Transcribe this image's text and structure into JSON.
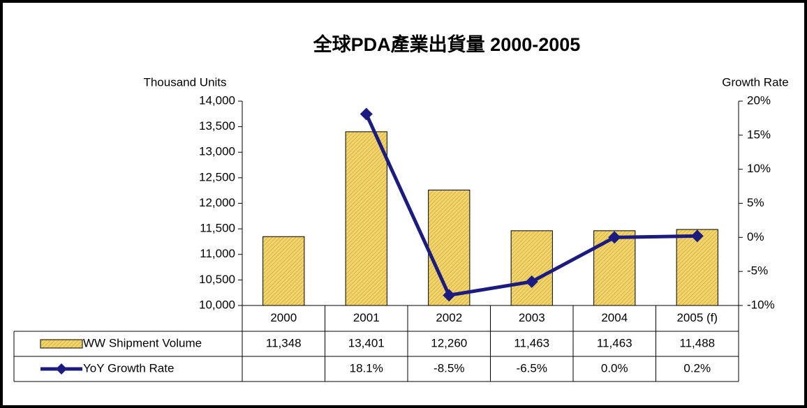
{
  "chart_data": {
    "type": "bar_line",
    "title": "全球PDA產業出貨量 2000-2005",
    "y_label": "Thousand Units",
    "y2_label": "Growth Rate",
    "categories": [
      "2000",
      "2001",
      "2002",
      "2003",
      "2004",
      "2005 (f)"
    ],
    "series": [
      {
        "name": "WW Shipment Volume",
        "type": "bar",
        "color": "#f2d46a",
        "axis": "y",
        "values": [
          11348,
          13401,
          12260,
          11463,
          11463,
          11488
        ],
        "value_labels": [
          "11,348",
          "13,401",
          "12,260",
          "11,463",
          "11,463",
          "11,488"
        ]
      },
      {
        "name": "YoY Growth Rate",
        "type": "line",
        "color": "#1c1c80",
        "axis": "y2",
        "values": [
          null,
          18.1,
          -8.5,
          -6.5,
          0.0,
          0.2
        ],
        "value_labels": [
          null,
          "18.1%",
          "-8.5%",
          "-6.5%",
          "0.0%",
          "0.2%"
        ]
      }
    ],
    "ylim": [
      10000,
      14000
    ],
    "yticks": [
      {
        "value": 10000,
        "label": "10,000"
      },
      {
        "value": 10500,
        "label": "10,500"
      },
      {
        "value": 11000,
        "label": "11,000"
      },
      {
        "value": 11500,
        "label": "11,500"
      },
      {
        "value": 12000,
        "label": "12,000"
      },
      {
        "value": 12500,
        "label": "12,500"
      },
      {
        "value": 13000,
        "label": "13,000"
      },
      {
        "value": 13500,
        "label": "13,500"
      },
      {
        "value": 14000,
        "label": "14,000"
      }
    ],
    "y2lim": [
      -10,
      20
    ],
    "y2ticks": [
      {
        "value": -10,
        "label": "-10%"
      },
      {
        "value": -5,
        "label": "-5%"
      },
      {
        "value": 0,
        "label": "0%"
      },
      {
        "value": 5,
        "label": "5%"
      },
      {
        "value": 10,
        "label": "10%"
      },
      {
        "value": 15,
        "label": "15%"
      },
      {
        "value": 20,
        "label": "20%"
      }
    ]
  }
}
